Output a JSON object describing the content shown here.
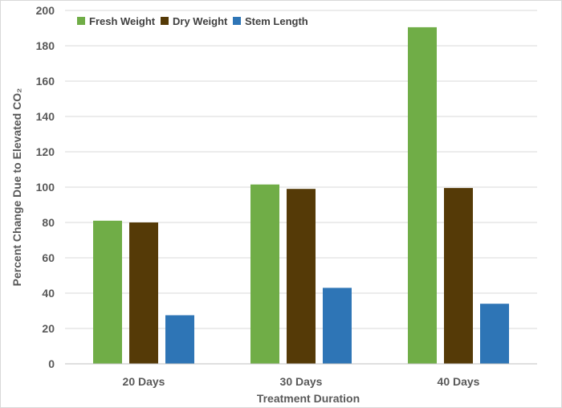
{
  "chart_data": {
    "type": "bar",
    "categories": [
      "20 Days",
      "30 Days",
      "40 Days"
    ],
    "series": [
      {
        "name": "Fresh Weight",
        "color": "#70ad47",
        "values": [
          81,
          101.5,
          190.5
        ]
      },
      {
        "name": "Dry Weight",
        "color": "#553a07",
        "values": [
          80,
          99,
          99.5
        ]
      },
      {
        "name": "Stem Length",
        "color": "#2e75b6",
        "values": [
          27.5,
          43,
          34
        ]
      }
    ],
    "title": "",
    "xlabel": "Treatment Duration",
    "ylabel": "Percent Change Due to Elevated CO₂",
    "ylim": [
      0,
      200
    ],
    "yticks": [
      0,
      20,
      40,
      60,
      80,
      100,
      120,
      140,
      160,
      180,
      200
    ],
    "grid": true,
    "legend_position": "top-left"
  }
}
